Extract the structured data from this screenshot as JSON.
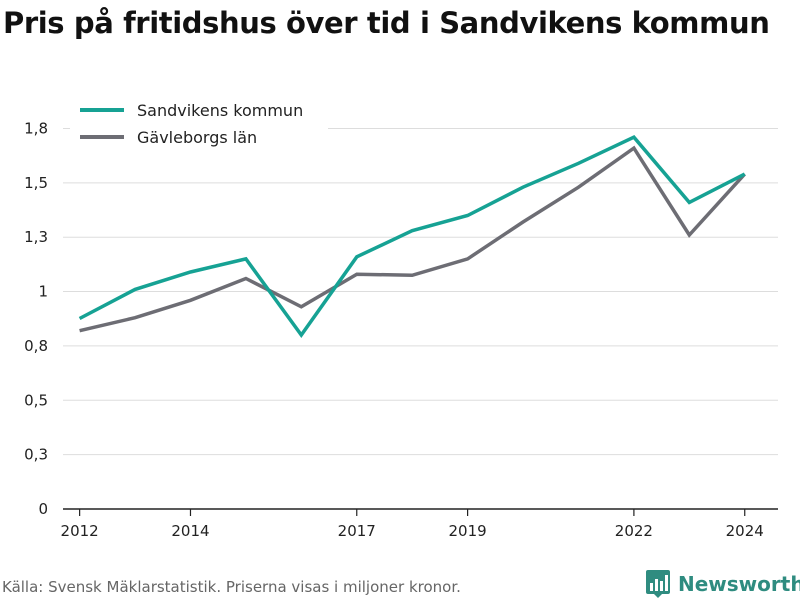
{
  "title": "Pris på fritidshus över tid i Sandvikens kommun",
  "source": "Källa: Svensk Mäklarstatistik. Priserna visas i miljoner kronor.",
  "brand": {
    "name": "Newsworthy",
    "icon": "bar-chart-pin-icon",
    "color": "#2f8c80"
  },
  "chart_data": {
    "type": "line",
    "title": "Pris på fritidshus över tid i Sandvikens kommun",
    "x": [
      2012,
      2013,
      2014,
      2015,
      2016,
      2017,
      2018,
      2019,
      2020,
      2021,
      2022,
      2023,
      2024
    ],
    "x_tick_labels": [
      "2012",
      "2014",
      "2017",
      "2019",
      "2022",
      "2024"
    ],
    "y_tick_values": [
      0,
      0.25,
      0.5,
      0.75,
      1.0,
      1.25,
      1.5,
      1.75
    ],
    "y_tick_labels": [
      "0",
      "0,3",
      "0,5",
      "0,8",
      "1",
      "1,3",
      "1,5",
      "1,8"
    ],
    "ylim": [
      0,
      1.75
    ],
    "grid": true,
    "legend_position": "top-left",
    "series": [
      {
        "name": "Sandvikens kommun",
        "color": "#16a294",
        "values": [
          0.876,
          1.01,
          1.09,
          1.15,
          0.8,
          1.16,
          1.28,
          1.35,
          1.48,
          1.59,
          1.71,
          1.41,
          1.54
        ]
      },
      {
        "name": "Gävleborgs län",
        "color": "#6d6d74",
        "values": [
          0.82,
          0.88,
          0.96,
          1.06,
          0.93,
          1.08,
          1.075,
          1.15,
          1.32,
          1.48,
          1.66,
          1.26,
          1.54
        ]
      }
    ]
  }
}
